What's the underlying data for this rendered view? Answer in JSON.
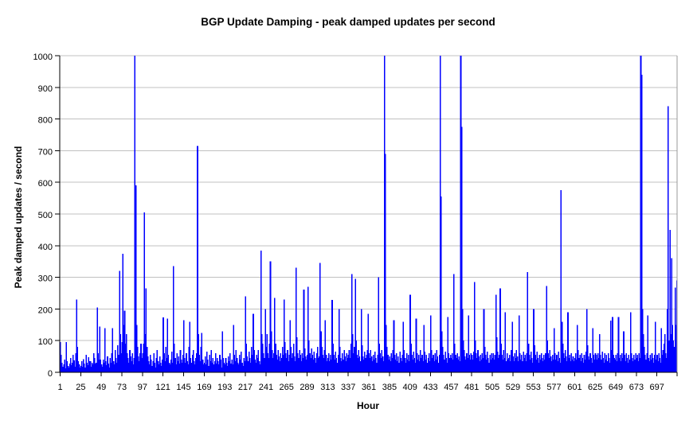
{
  "chart": {
    "title": "BGP Update Damping - peak damped updates per second",
    "x_axis_title": "Hour",
    "y_axis_title": "Peak damped updates / second"
  },
  "chart_data": {
    "type": "bar",
    "title": "BGP Update Damping - peak damped updates per second",
    "xlabel": "Hour",
    "ylabel": "Peak damped updates / second",
    "ylim": [
      0,
      1000
    ],
    "grid": "horizontal",
    "legend": "none",
    "bar_color": "#0000FF",
    "gridline_color": "#C0C0C0",
    "plot_border_color": "#999999",
    "axis_color": "#000000",
    "x_first_hour": 1,
    "x_last_hour": 720,
    "x_tick_interval": 24,
    "x_tick_labels": [
      "1",
      "25",
      "49",
      "73",
      "97",
      "121",
      "145",
      "169",
      "193",
      "217",
      "241",
      "265",
      "289",
      "313",
      "337",
      "361",
      "385",
      "409",
      "433",
      "457",
      "481",
      "505",
      "529",
      "553",
      "577",
      "601",
      "625",
      "649",
      "673",
      "697"
    ],
    "y_ticks": [
      0,
      100,
      200,
      300,
      400,
      500,
      600,
      700,
      800,
      900,
      1000
    ],
    "note": "hourly peak damped updates per second; tallest spikes exceed the axis and are clipped at 1000",
    "values": [
      95,
      55,
      30,
      18,
      25,
      40,
      12,
      95,
      35,
      20,
      15,
      28,
      45,
      22,
      30,
      55,
      38,
      18,
      60,
      230,
      80,
      35,
      25,
      15,
      20,
      35,
      18,
      42,
      28,
      15,
      55,
      30,
      22,
      48,
      35,
      35,
      18,
      30,
      25,
      60,
      45,
      28,
      30,
      205,
      60,
      40,
      145,
      40,
      25,
      18,
      40,
      30,
      140,
      35,
      22,
      50,
      28,
      15,
      45,
      30,
      60,
      140,
      35,
      25,
      70,
      45,
      30,
      85,
      55,
      320,
      120,
      60,
      95,
      375,
      150,
      195,
      90,
      120,
      60,
      45,
      30,
      70,
      50,
      35,
      60,
      25,
      45,
      1000,
      590,
      150,
      80,
      50,
      35,
      60,
      90,
      45,
      60,
      90,
      505,
      120,
      265,
      80,
      50,
      35,
      25,
      55,
      40,
      20,
      35,
      60,
      30,
      15,
      45,
      70,
      35,
      25,
      50,
      30,
      20,
      40,
      173,
      60,
      35,
      80,
      45,
      170,
      55,
      30,
      25,
      40,
      65,
      30,
      335,
      90,
      45,
      25,
      60,
      35,
      50,
      28,
      70,
      40,
      30,
      55,
      165,
      45,
      30,
      60,
      35,
      25,
      80,
      160,
      45,
      30,
      55,
      70,
      35,
      25,
      45,
      60,
      715,
      120,
      55,
      35,
      80,
      125,
      40,
      25,
      30,
      50,
      25,
      65,
      40,
      20,
      55,
      35,
      70,
      30,
      45,
      25,
      35,
      60,
      28,
      45,
      35,
      25,
      55,
      40,
      15,
      130,
      45,
      30,
      25,
      45,
      30,
      20,
      50,
      35,
      60,
      28,
      40,
      25,
      150,
      55,
      35,
      70,
      45,
      30,
      25,
      55,
      40,
      65,
      30,
      20,
      45,
      35,
      240,
      90,
      50,
      35,
      65,
      45,
      30,
      80,
      55,
      185,
      70,
      40,
      30,
      55,
      45,
      70,
      35,
      25,
      385,
      120,
      90,
      60,
      45,
      200,
      80,
      120,
      60,
      45,
      90,
      350,
      130,
      70,
      45,
      60,
      235,
      90,
      55,
      40,
      70,
      50,
      35,
      60,
      45,
      80,
      55,
      230,
      95,
      60,
      45,
      70,
      35,
      55,
      165,
      80,
      45,
      60,
      90,
      50,
      35,
      330,
      110,
      60,
      45,
      70,
      55,
      35,
      60,
      45,
      261,
      75,
      50,
      40,
      55,
      270,
      100,
      60,
      45,
      75,
      55,
      40,
      65,
      45,
      30,
      60,
      80,
      45,
      50,
      345,
      130,
      80,
      55,
      45,
      70,
      165,
      55,
      35,
      45,
      60,
      35,
      55,
      40,
      229,
      90,
      55,
      40,
      65,
      45,
      30,
      55,
      200,
      80,
      45,
      35,
      60,
      40,
      70,
      50,
      35,
      60,
      45,
      55,
      70,
      45,
      90,
      310,
      120,
      60,
      80,
      295,
      100,
      55,
      45,
      70,
      50,
      35,
      200,
      85,
      50,
      40,
      65,
      45,
      55,
      70,
      185,
      60,
      45,
      70,
      50,
      35,
      55,
      40,
      65,
      45,
      30,
      55,
      300,
      90,
      60,
      45,
      70,
      50,
      35,
      1000,
      690,
      150,
      80,
      55,
      40,
      50,
      35,
      60,
      45,
      70,
      165,
      55,
      40,
      60,
      35,
      50,
      30,
      65,
      45,
      35,
      55,
      160,
      70,
      45,
      30,
      60,
      40,
      55,
      35,
      245,
      90,
      55,
      40,
      65,
      45,
      30,
      170,
      60,
      40,
      55,
      35,
      70,
      45,
      55,
      35,
      150,
      65,
      40,
      55,
      30,
      45,
      60,
      35,
      180,
      70,
      45,
      55,
      35,
      60,
      40,
      70,
      50,
      30,
      55,
      1000,
      555,
      130,
      80,
      55,
      40,
      65,
      45,
      30,
      175,
      60,
      45,
      55,
      45,
      60,
      40,
      310,
      90,
      55,
      45,
      60,
      40,
      50,
      35,
      1000,
      775,
      200,
      100,
      70,
      50,
      40,
      60,
      45,
      180,
      55,
      40,
      60,
      55,
      40,
      65,
      285,
      100,
      60,
      45,
      70,
      50,
      35,
      55,
      40,
      60,
      45,
      200,
      80,
      55,
      40,
      65,
      45,
      30,
      55,
      40,
      60,
      45,
      60,
      40,
      55,
      245,
      110,
      65,
      45,
      55,
      265,
      90,
      55,
      40,
      70,
      45,
      190,
      35,
      60,
      40,
      45,
      55,
      35,
      70,
      160,
      50,
      35,
      60,
      45,
      70,
      50,
      35,
      180,
      60,
      40,
      55,
      35,
      65,
      45,
      55,
      35,
      60,
      317,
      90,
      55,
      40,
      65,
      45,
      30,
      200,
      85,
      55,
      40,
      65,
      45,
      30,
      55,
      40,
      60,
      45,
      35,
      55,
      40,
      60,
      272,
      100,
      60,
      45,
      70,
      50,
      35,
      55,
      40,
      140,
      60,
      40,
      55,
      35,
      65,
      45,
      30,
      575,
      160,
      90,
      60,
      45,
      70,
      50,
      35,
      190,
      45,
      55,
      35,
      60,
      40,
      50,
      35,
      45,
      60,
      40,
      150,
      70,
      45,
      55,
      35,
      60,
      45,
      30,
      55,
      40,
      65,
      200,
      85,
      50,
      40,
      60,
      45,
      30,
      140,
      55,
      40,
      60,
      55,
      40,
      60,
      45,
      120,
      55,
      40,
      65,
      45,
      30,
      60,
      40,
      55,
      35,
      60,
      45,
      30,
      163,
      70,
      175,
      55,
      45,
      40,
      55,
      35,
      60,
      175,
      45,
      55,
      35,
      60,
      45,
      130,
      55,
      35,
      60,
      45,
      30,
      55,
      40,
      190,
      60,
      45,
      35,
      55,
      40,
      60,
      45,
      55,
      35,
      60,
      45,
      1000,
      940,
      200,
      120,
      80,
      55,
      40,
      60,
      180,
      45,
      35,
      55,
      40,
      60,
      45,
      30,
      55,
      160,
      40,
      55,
      35,
      60,
      45,
      30,
      140,
      55,
      70,
      90,
      120,
      60,
      45,
      200,
      840,
      100,
      450,
      120,
      360,
      150,
      100,
      80,
      268,
      150,
      290
    ]
  }
}
